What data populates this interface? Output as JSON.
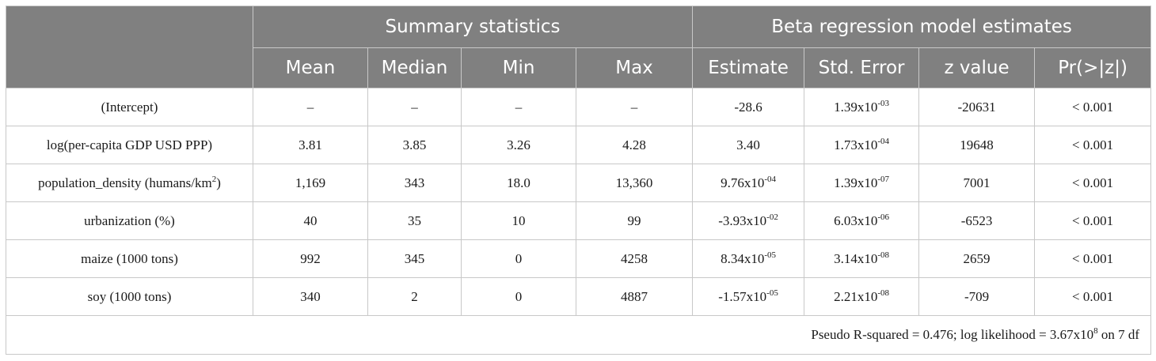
{
  "header": {
    "group_summary": "Summary statistics",
    "group_beta": "Beta regression model estimates",
    "columns": [
      "Mean",
      "Median",
      "Min",
      "Max",
      "Estimate",
      "Std. Error",
      "z value",
      "Pr(>|z|)"
    ]
  },
  "rows": [
    {
      "label": "(Intercept)",
      "mean": "–",
      "median": "–",
      "min": "–",
      "max": "–",
      "estimate": {
        "base": "-28.6",
        "exp": ""
      },
      "std_error": {
        "base": "1.39x10",
        "exp": "-03"
      },
      "z_value": "-20631",
      "p_value": "< 0.001"
    },
    {
      "label": "log(per-capita GDP USD PPP)",
      "mean": "3.81",
      "median": "3.85",
      "min": "3.26",
      "max": "4.28",
      "estimate": {
        "base": "3.40",
        "exp": ""
      },
      "std_error": {
        "base": "1.73x10",
        "exp": "-04"
      },
      "z_value": "19648",
      "p_value": "< 0.001"
    },
    {
      "label": "population_density (humans/km",
      "label_sup": "2",
      "label_end": ")",
      "mean": "1,169",
      "median": "343",
      "min": "18.0",
      "max": "13,360",
      "estimate": {
        "base": "9.76x10",
        "exp": "-04"
      },
      "std_error": {
        "base": "1.39x10",
        "exp": "-07"
      },
      "z_value": "7001",
      "p_value": "< 0.001"
    },
    {
      "label": "urbanization (%)",
      "mean": "40",
      "median": "35",
      "min": "10",
      "max": "99",
      "estimate": {
        "base": "-3.93x10",
        "exp": "-02"
      },
      "std_error": {
        "base": "6.03x10",
        "exp": "-06"
      },
      "z_value": "-6523",
      "p_value": "< 0.001"
    },
    {
      "label": "maize (1000 tons)",
      "mean": "992",
      "median": "345",
      "min": "0",
      "max": "4258",
      "estimate": {
        "base": "8.34x10",
        "exp": "-05"
      },
      "std_error": {
        "base": "3.14x10",
        "exp": "-08"
      },
      "z_value": "2659",
      "p_value": "< 0.001"
    },
    {
      "label": "soy (1000 tons)",
      "mean": "340",
      "median": "2",
      "min": "0",
      "max": "4887",
      "estimate": {
        "base": "-1.57x10",
        "exp": "-05"
      },
      "std_error": {
        "base": "2.21x10",
        "exp": "-08"
      },
      "z_value": "-709",
      "p_value": "< 0.001"
    }
  ],
  "footnote": {
    "prefix": "Pseudo R-squared = 0.476; log likelihood = 3.67x10",
    "exp": "8",
    "suffix": " on 7 df"
  }
}
